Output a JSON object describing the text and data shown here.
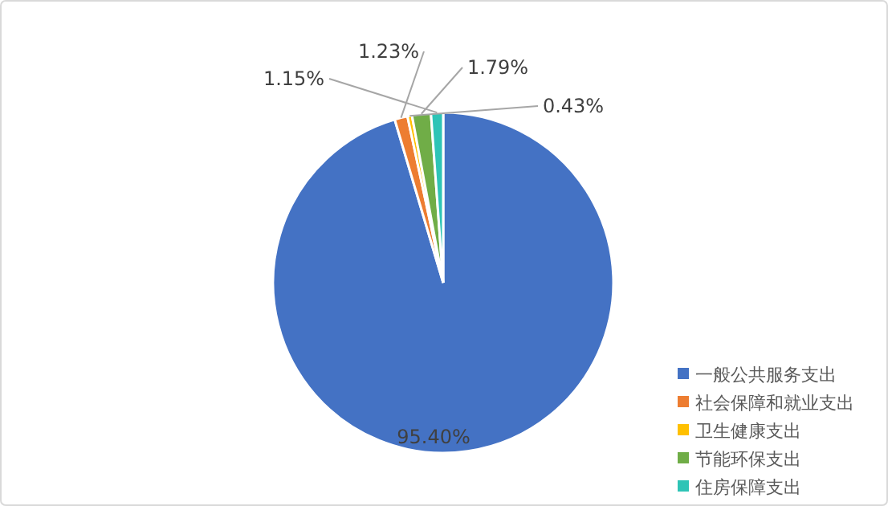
{
  "chart_data": {
    "type": "pie",
    "categories": [
      "一般公共服务支出",
      "社会保障和就业支出",
      "卫生健康支出",
      "节能环保支出",
      "住房保障支出"
    ],
    "values": [
      95.4,
      1.23,
      0.43,
      1.79,
      1.15
    ],
    "colors": [
      "#4472c4",
      "#ed7d31",
      "#ffc000",
      "#70ad47",
      "#2ec4b6"
    ],
    "value_labels": [
      "95.40%",
      "1.23%",
      "0.43%",
      "1.79%",
      "1.15%"
    ],
    "legend": "bottom right"
  }
}
